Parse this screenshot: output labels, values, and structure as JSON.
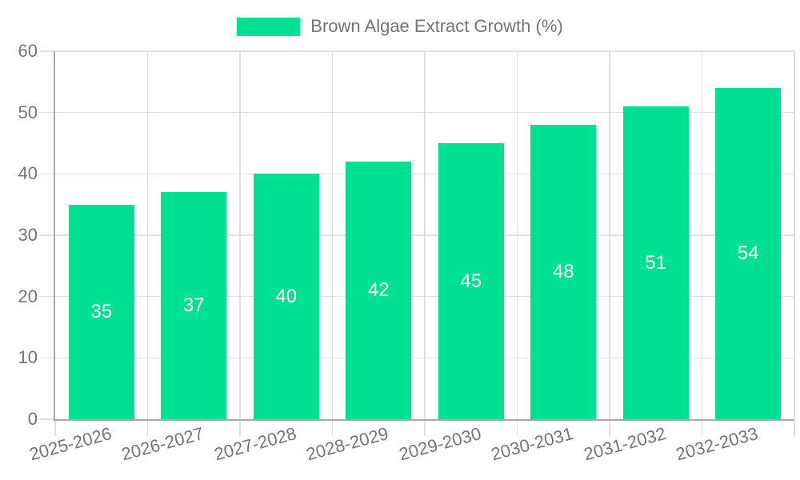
{
  "chart_data": {
    "type": "bar",
    "title": "Brown Algae Extract Growth (%)",
    "series_name": "Brown Algae Extract Growth (%)",
    "categories": [
      "2025-2026",
      "2026-2027",
      "2027-2028",
      "2028-2029",
      "2029-2030",
      "2030-2031",
      "2031-2032",
      "2032-2033"
    ],
    "values": [
      35,
      37,
      40,
      42,
      45,
      48,
      51,
      54
    ],
    "xlabel": "",
    "ylabel": "",
    "ylim": [
      0,
      60
    ],
    "yticks": [
      0,
      10,
      20,
      30,
      40,
      50,
      60
    ],
    "grid": true,
    "legend_position": "top-center",
    "x_label_rotation_deg": -15,
    "value_labels": "inside-center-white",
    "colors": {
      "bar": "#00e093",
      "value_label": "#ffffff",
      "axis_text": "#757575",
      "gridline": "#e0e0e0",
      "axis_line": "#a8a8a8",
      "background": "#ffffff"
    }
  }
}
